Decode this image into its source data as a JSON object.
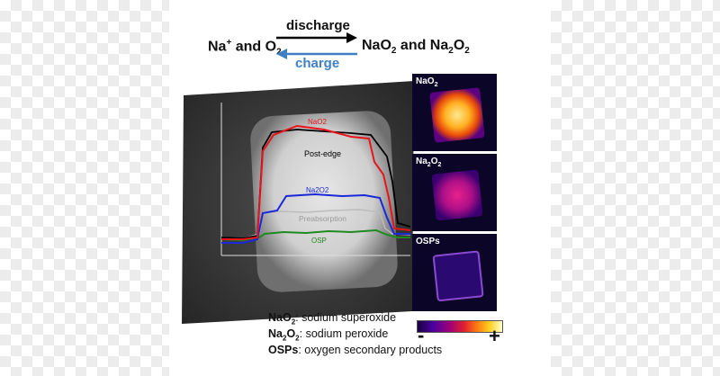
{
  "equation": {
    "reactant_base": "Na",
    "reactant_charge": "+",
    "reactant_join": " and O",
    "reactant_sub": "2",
    "product_1": "NaO",
    "product_1_sub": "2",
    "product_join": " and Na",
    "product_2_sub1": "2",
    "product_2_mid": "O",
    "product_2_sub2": "2",
    "discharge_label": "discharge",
    "charge_label": "charge",
    "discharge_color": "#000000",
    "charge_color": "#3f7fc4"
  },
  "plot": {
    "labels": {
      "nao2": "NaO2",
      "post_edge": "Post-edge",
      "na2o2": "Na2O2",
      "preabsorption": "Preabsorption",
      "osp": "OSP"
    },
    "colors": {
      "nao2": "#e8141a",
      "post_edge": "#000000",
      "na2o2": "#1a28d8",
      "preabsorption": "#b8b8b8",
      "osp": "#1f8a1f"
    }
  },
  "maps": [
    {
      "name_base": "NaO",
      "name_sub": "2",
      "name_tail": "",
      "icon": "nao2-map-image"
    },
    {
      "name_base": "Na",
      "name_sub": "2",
      "name_tail": "O",
      "name_sub2": "2",
      "icon": "na2o2-map-image"
    },
    {
      "name_base": "OSPs",
      "icon": "osps-map-image"
    }
  ],
  "colorbar": {
    "min_label": "-",
    "max_label": "+"
  },
  "legend": [
    {
      "term_base": "NaO",
      "term_sub": "2",
      "term_tail": "",
      "desc": ": sodium superoxide"
    },
    {
      "term_base": "Na",
      "term_sub": "2",
      "term_tail": "O",
      "term_sub2": "2",
      "desc": ": sodium peroxide"
    },
    {
      "term_base": "OSPs",
      "desc": ": oxygen secondary products"
    }
  ]
}
